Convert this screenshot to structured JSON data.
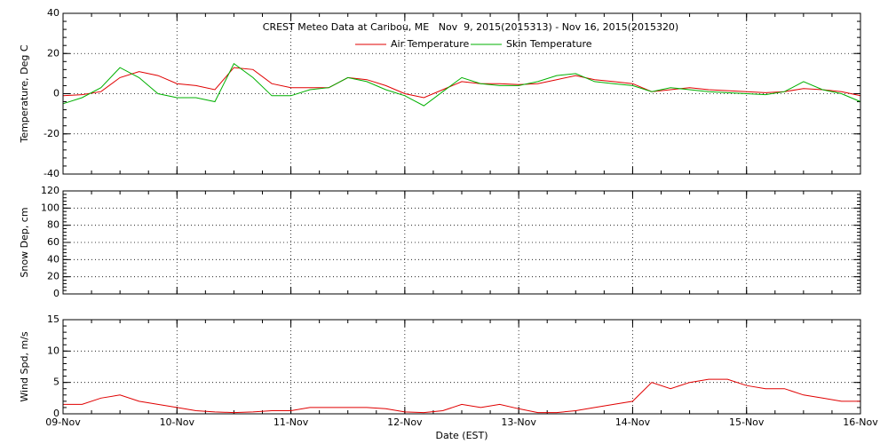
{
  "chart_data": [
    {
      "type": "line",
      "title": "CREST Meteo Data at Caribou, ME   Nov  9, 2015(2015313) - Nov 16, 2015(2015320)",
      "ylabel": "Temperature, Deg C",
      "xlim": [
        0,
        7
      ],
      "xticks": [
        0,
        1,
        2,
        3,
        4,
        5,
        6,
        7
      ],
      "ylim": [
        -40,
        40
      ],
      "yticks": [
        -40,
        -20,
        0,
        20,
        40
      ],
      "grid": true,
      "legend": "top",
      "x": [
        0,
        0.167,
        0.333,
        0.5,
        0.667,
        0.833,
        1,
        1.167,
        1.333,
        1.5,
        1.667,
        1.833,
        2,
        2.167,
        2.333,
        2.5,
        2.667,
        2.833,
        3,
        3.167,
        3.333,
        3.5,
        3.667,
        3.833,
        4,
        4.167,
        4.333,
        4.5,
        4.667,
        4.833,
        5,
        5.167,
        5.333,
        5.5,
        5.667,
        5.833,
        6,
        6.167,
        6.333,
        6.5,
        6.667,
        6.833,
        7
      ],
      "series": [
        {
          "name": "Air Temperature",
          "color": "#e00000",
          "values": [
            -1,
            -0.5,
            1,
            8,
            11,
            9,
            5,
            4,
            2,
            13,
            12,
            5,
            3,
            3,
            3,
            8,
            7,
            4,
            0,
            -2,
            2,
            6,
            5,
            5,
            4.5,
            5,
            7,
            9,
            7,
            6,
            5,
            1,
            2,
            3,
            2,
            1.5,
            1,
            0.5,
            1,
            2.5,
            2,
            1,
            -1
          ]
        },
        {
          "name": "Skin Temperature",
          "color": "#00b000",
          "values": [
            -5,
            -2,
            3,
            13,
            8,
            0,
            -2,
            -2,
            -4,
            15,
            8,
            -1,
            -1,
            2,
            3,
            8,
            6,
            2,
            -1,
            -6,
            1,
            8,
            5,
            4,
            4,
            6,
            9,
            10,
            6,
            5,
            4,
            1,
            3,
            2,
            1,
            0.5,
            0,
            -0.5,
            1,
            6,
            2,
            0,
            -4
          ]
        }
      ]
    },
    {
      "type": "line",
      "ylabel": "Snow Dep, cm",
      "xlim": [
        0,
        7
      ],
      "xticks": [
        0,
        1,
        2,
        3,
        4,
        5,
        6,
        7
      ],
      "ylim": [
        0,
        120
      ],
      "yticks": [
        0,
        20,
        40,
        60,
        80,
        100,
        120
      ],
      "grid": true,
      "series": []
    },
    {
      "type": "line",
      "ylabel": "Wind Spd, m/s",
      "xlabel": "Date (EST)",
      "xlim": [
        0,
        7
      ],
      "xticks": [
        {
          "value": 0,
          "label": "09-Nov"
        },
        {
          "value": 1,
          "label": "10-Nov"
        },
        {
          "value": 2,
          "label": "11-Nov"
        },
        {
          "value": 3,
          "label": "12-Nov"
        },
        {
          "value": 4,
          "label": "13-Nov"
        },
        {
          "value": 5,
          "label": "14-Nov"
        },
        {
          "value": 6,
          "label": "15-Nov"
        },
        {
          "value": 7,
          "label": "16-Nov"
        }
      ],
      "ylim": [
        0,
        15
      ],
      "yticks": [
        0,
        5,
        10,
        15
      ],
      "grid": true,
      "x": [
        0,
        0.167,
        0.333,
        0.5,
        0.667,
        0.833,
        1,
        1.167,
        1.333,
        1.5,
        1.667,
        1.833,
        2,
        2.167,
        2.333,
        2.5,
        2.667,
        2.833,
        3,
        3.167,
        3.333,
        3.5,
        3.667,
        3.833,
        4,
        4.167,
        4.333,
        4.5,
        4.667,
        4.833,
        5,
        5.167,
        5.333,
        5.5,
        5.667,
        5.833,
        6,
        6.167,
        6.333,
        6.5,
        6.667,
        6.833,
        7
      ],
      "series": [
        {
          "name": "Wind Speed",
          "color": "#e00000",
          "values": [
            1.5,
            1.5,
            2.5,
            3,
            2,
            1.5,
            1,
            0.5,
            0.3,
            0.2,
            0.3,
            0.5,
            0.5,
            1,
            1,
            1,
            1,
            0.8,
            0.3,
            0.2,
            0.5,
            1.5,
            1,
            1.5,
            0.8,
            0.2,
            0.2,
            0.5,
            1,
            1.5,
            2,
            5,
            4,
            5,
            5.5,
            5.5,
            4.5,
            4,
            4,
            3,
            2.5,
            2,
            2
          ]
        }
      ]
    }
  ]
}
